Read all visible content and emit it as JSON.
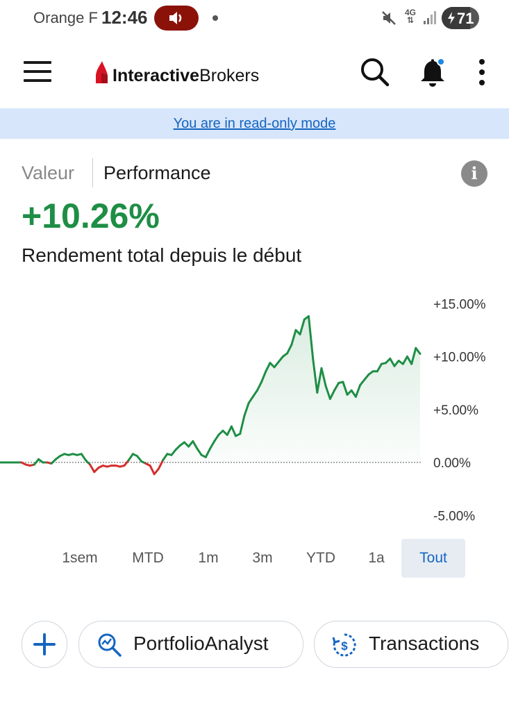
{
  "status_bar": {
    "carrier": "Orange F",
    "time": "12:46",
    "network": "4G",
    "battery": "71"
  },
  "header": {
    "brand_bold": "Interactive",
    "brand_regular": "Brokers",
    "icons": [
      "menu-icon",
      "search-icon",
      "bell-icon",
      "more-icon"
    ],
    "notification_dot_color": "#1e88e5"
  },
  "banner": {
    "text": "You are in read-only mode"
  },
  "tabs": {
    "valeur": "Valeur",
    "performance": "Performance",
    "active": "Performance"
  },
  "performance": {
    "value": "+10.26%",
    "label": "Rendement total depuis le début"
  },
  "chart_data": {
    "type": "line",
    "y_ticks": [
      "+15.00%",
      "+10.00%",
      "+5.00%",
      "0.00%",
      "-5.00%"
    ],
    "ylim": [
      -5,
      15
    ],
    "baseline": 0,
    "positive_color": "#1e8e45",
    "negative_color": "#d32f2f",
    "series": [
      {
        "values": [
          0.0,
          0.0,
          0.0,
          0.0,
          0.0,
          0.0,
          -0.2,
          -0.3,
          -0.2,
          0.3,
          0.0,
          0.0,
          -0.1,
          0.3,
          0.6,
          0.8,
          0.7,
          0.8,
          0.7,
          0.8,
          0.2,
          -0.2,
          -0.9,
          -0.5,
          -0.3,
          -0.4,
          -0.3,
          -0.3,
          -0.4,
          -0.3,
          0.2,
          0.8,
          0.6,
          0.1,
          -0.1,
          -0.3,
          -1.1,
          -0.6,
          0.2,
          0.8,
          0.7,
          1.2,
          1.6,
          1.9,
          1.5,
          2.0,
          1.3,
          0.7,
          0.5,
          1.3,
          2.0,
          2.6,
          3.0,
          2.6,
          3.4,
          2.5,
          2.7,
          4.4,
          5.6,
          6.2,
          6.8,
          7.6,
          8.6,
          9.4,
          9.0,
          9.5,
          10.0,
          10.3,
          11.1,
          12.5,
          12.1,
          13.5,
          13.8,
          9.8,
          6.6,
          8.9,
          7.2,
          6.0,
          6.8,
          7.5,
          7.6,
          6.4,
          6.8,
          6.2,
          7.3,
          7.8,
          8.3,
          8.6,
          8.6,
          9.3,
          9.4,
          9.8,
          9.1,
          9.6,
          9.3,
          10.0,
          9.3,
          10.8,
          10.26
        ]
      }
    ]
  },
  "ranges": [
    "1sem",
    "MTD",
    "1m",
    "3m",
    "YTD",
    "1a",
    "Tout"
  ],
  "active_range": "Tout",
  "actions": {
    "add_icon": "plus-icon",
    "portfolio_analyst": "PortfolioAnalyst",
    "transactions": "Transactions"
  }
}
